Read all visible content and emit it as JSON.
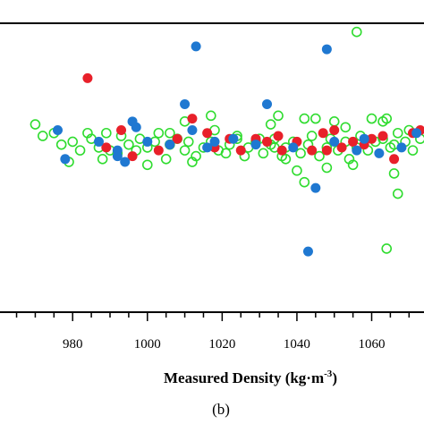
{
  "chart_data": {
    "type": "scatter",
    "title": "",
    "xlabel": "Measured Density (kg·m",
    "xlabel_superscript": "-3",
    "xlabel_suffix": ")",
    "panel_label": "(b)",
    "x_ticks": [
      980,
      1000,
      1020,
      1040,
      1060
    ],
    "x_tick_labels": [
      "980",
      "1000",
      "1020",
      "1040",
      "1060"
    ],
    "xlim": [
      962,
      1074
    ],
    "ylim": [
      -6.5,
      3.5
    ],
    "grid": false,
    "legend": "none",
    "series": [
      {
        "style": "filled",
        "color": "#e8202a",
        "points": [
          [
            984,
            1.6
          ],
          [
            993,
            -0.2
          ],
          [
            1003,
            -0.9
          ],
          [
            1012,
            0.2
          ],
          [
            1016,
            -0.3
          ],
          [
            1022,
            -0.5
          ],
          [
            1025,
            -0.9
          ],
          [
            1029,
            -0.5
          ],
          [
            1032,
            -0.6
          ],
          [
            1036,
            -0.9
          ],
          [
            1040,
            -0.6
          ],
          [
            1047,
            -0.3
          ],
          [
            1050,
            -0.2
          ],
          [
            1052,
            -0.8
          ],
          [
            1055,
            -0.6
          ],
          [
            1058,
            -0.7
          ],
          [
            1063,
            -0.4
          ],
          [
            1071,
            -0.3
          ],
          [
            989,
            -0.8
          ],
          [
            1008,
            -0.5
          ],
          [
            996,
            -1.1
          ],
          [
            1018,
            -0.8
          ],
          [
            1044,
            -0.9
          ],
          [
            1060,
            -0.5
          ],
          [
            1066,
            -1.2
          ],
          [
            1073,
            -0.2
          ],
          [
            1048,
            -0.9
          ],
          [
            1035,
            -0.4
          ]
        ]
      },
      {
        "style": "filled",
        "color": "#1f78d1",
        "points": [
          [
            976,
            -0.2
          ],
          [
            978,
            -1.2
          ],
          [
            987,
            -0.6
          ],
          [
            992,
            -0.9
          ],
          [
            994,
            -1.3
          ],
          [
            997,
            -0.1
          ],
          [
            1000,
            -0.6
          ],
          [
            1010,
            0.7
          ],
          [
            1013,
            2.7
          ],
          [
            1016,
            -0.8
          ],
          [
            1018,
            -0.6
          ],
          [
            1023,
            -0.5
          ],
          [
            1029,
            -0.7
          ],
          [
            1032,
            0.7
          ],
          [
            1043,
            -4.4
          ],
          [
            1045,
            -2.2
          ],
          [
            1048,
            2.6
          ],
          [
            1050,
            -0.6
          ],
          [
            1056,
            -0.9
          ],
          [
            1062,
            -1.0
          ],
          [
            1068,
            -0.8
          ],
          [
            1072,
            -0.3
          ],
          [
            996,
            0.1
          ],
          [
            1006,
            -0.7
          ],
          [
            1012,
            -0.2
          ],
          [
            1039,
            -0.8
          ],
          [
            1058,
            -0.5
          ],
          [
            992,
            -1.1
          ]
        ]
      },
      {
        "style": "hollow",
        "color": "#2fdc2f",
        "points": [
          [
            970,
            0.0
          ],
          [
            975,
            -0.3
          ],
          [
            977,
            -0.7
          ],
          [
            979,
            -1.3
          ],
          [
            980,
            -0.6
          ],
          [
            982,
            -0.9
          ],
          [
            985,
            -0.5
          ],
          [
            987,
            -0.8
          ],
          [
            989,
            -0.3
          ],
          [
            990,
            -0.9
          ],
          [
            992,
            -1.0
          ],
          [
            993,
            -0.4
          ],
          [
            995,
            -0.7
          ],
          [
            997,
            -0.9
          ],
          [
            998,
            -0.5
          ],
          [
            1000,
            -0.8
          ],
          [
            1002,
            -0.6
          ],
          [
            1003,
            -0.3
          ],
          [
            1005,
            -1.2
          ],
          [
            1006,
            -0.7
          ],
          [
            1008,
            -0.5
          ],
          [
            1010,
            -0.9
          ],
          [
            1011,
            -0.6
          ],
          [
            1013,
            -1.1
          ],
          [
            1015,
            -0.8
          ],
          [
            1017,
            -0.6
          ],
          [
            1019,
            -0.9
          ],
          [
            1021,
            -1.0
          ],
          [
            1022,
            -0.7
          ],
          [
            1024,
            -0.5
          ],
          [
            1026,
            -1.1
          ],
          [
            1027,
            -0.8
          ],
          [
            1029,
            -0.6
          ],
          [
            1031,
            -1.0
          ],
          [
            1033,
            -0.7
          ],
          [
            1034,
            -0.5
          ],
          [
            1036,
            -1.1
          ],
          [
            1037,
            -0.8
          ],
          [
            1039,
            -0.6
          ],
          [
            1041,
            -1.0
          ],
          [
            1043,
            -0.7
          ],
          [
            1044,
            -0.4
          ],
          [
            1046,
            -1.1
          ],
          [
            1048,
            -0.8
          ],
          [
            1049,
            -0.5
          ],
          [
            1051,
            -0.9
          ],
          [
            1053,
            -0.6
          ],
          [
            1054,
            -1.2
          ],
          [
            1056,
            -0.8
          ],
          [
            1057,
            -0.4
          ],
          [
            1059,
            -0.9
          ],
          [
            1061,
            -0.6
          ],
          [
            1063,
            -0.5
          ],
          [
            1065,
            -0.8
          ],
          [
            1067,
            -0.3
          ],
          [
            1069,
            -0.6
          ],
          [
            1071,
            -0.9
          ],
          [
            1073,
            -0.5
          ],
          [
            1056,
            3.2
          ],
          [
            1024,
            -0.4
          ],
          [
            1030,
            -0.5
          ],
          [
            1034,
            -0.8
          ],
          [
            1035,
            0.3
          ],
          [
            1042,
            0.2
          ],
          [
            1050,
            0.1
          ],
          [
            1066,
            -1.7
          ],
          [
            1067,
            -2.4
          ],
          [
            1064,
            -4.3
          ],
          [
            1042,
            -2.0
          ],
          [
            1066,
            -0.7
          ],
          [
            1070,
            -0.2
          ],
          [
            1055,
            -1.4
          ],
          [
            1063,
            0.1
          ],
          [
            1048,
            -1.5
          ],
          [
            1040,
            -1.6
          ],
          [
            1037,
            -1.2
          ],
          [
            1012,
            -1.3
          ],
          [
            1000,
            -1.4
          ],
          [
            988,
            -1.2
          ],
          [
            984,
            -0.3
          ],
          [
            972,
            -0.4
          ],
          [
            1064,
            0.2
          ],
          [
            1053,
            -0.1
          ],
          [
            1010,
            0.1
          ],
          [
            1006,
            -0.3
          ],
          [
            1018,
            -0.2
          ],
          [
            1045,
            0.2
          ],
          [
            1033,
            0.0
          ],
          [
            1017,
            0.3
          ],
          [
            1060,
            0.2
          ]
        ]
      }
    ]
  }
}
